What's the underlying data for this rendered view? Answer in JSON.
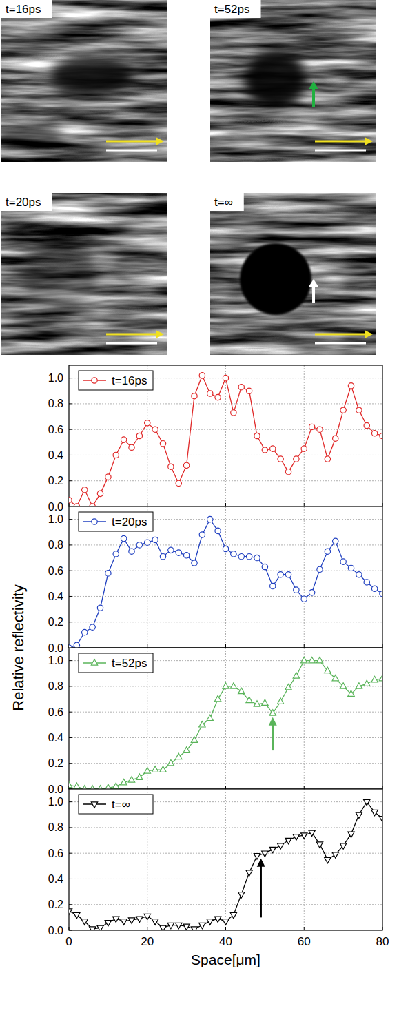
{
  "images": [
    {
      "label": "t=16ps"
    },
    {
      "label": "t=52ps"
    },
    {
      "label": "t=20ps"
    },
    {
      "label": "t=∞"
    }
  ],
  "axis_titles": {
    "x": "Space[μm]",
    "y": "Relative reflectivity"
  },
  "chart_data": [
    {
      "type": "line",
      "tick_labels": "y",
      "grid": true,
      "legend": "upper left",
      "xlim": [
        0,
        80
      ],
      "ylim": [
        0,
        1.1
      ],
      "xticks": [
        0,
        20,
        40,
        60,
        80
      ],
      "yticks": [
        {
          "value": 0,
          "label": "0.0"
        },
        {
          "value": 0.2,
          "label": "0.2"
        },
        {
          "value": 0.4,
          "label": "0.4"
        },
        {
          "value": 0.6,
          "label": "0.6"
        },
        {
          "value": 0.8,
          "label": "0.8"
        },
        {
          "value": 1,
          "label": "1.0"
        }
      ],
      "x": [
        0,
        2,
        4,
        6,
        8,
        10,
        12,
        14,
        16,
        18,
        20,
        22,
        24,
        26,
        28,
        30,
        32,
        34,
        36,
        38,
        40,
        42,
        44,
        46,
        48,
        50,
        52,
        54,
        56,
        58,
        60,
        62,
        64,
        66,
        68,
        70,
        72,
        74,
        76,
        78,
        80
      ],
      "series": [
        {
          "name": "t=16ps",
          "color": "#e02828",
          "marker": "circle",
          "values": [
            0.05,
            0.0,
            0.13,
            0.0,
            0.1,
            0.23,
            0.4,
            0.52,
            0.46,
            0.55,
            0.65,
            0.6,
            0.49,
            0.31,
            0.18,
            0.32,
            0.86,
            1.02,
            0.88,
            0.85,
            1.0,
            0.73,
            0.93,
            0.9,
            0.55,
            0.44,
            0.45,
            0.37,
            0.27,
            0.37,
            0.45,
            0.62,
            0.6,
            0.37,
            0.53,
            0.75,
            0.94,
            0.75,
            0.63,
            0.57,
            0.55
          ]
        }
      ]
    },
    {
      "type": "line",
      "tick_labels": "y",
      "grid": true,
      "legend": "upper left",
      "xlim": [
        0,
        80
      ],
      "ylim": [
        0,
        1.1
      ],
      "xticks": [
        0,
        20,
        40,
        60,
        80
      ],
      "yticks": [
        {
          "value": 0,
          "label": "0.0"
        },
        {
          "value": 0.2,
          "label": "0.2"
        },
        {
          "value": 0.4,
          "label": "0.4"
        },
        {
          "value": 0.6,
          "label": "0.6"
        },
        {
          "value": 0.8,
          "label": "0.8"
        },
        {
          "value": 1,
          "label": "1.0"
        }
      ],
      "x": [
        0,
        2,
        4,
        6,
        8,
        10,
        12,
        14,
        16,
        18,
        20,
        22,
        24,
        26,
        28,
        30,
        32,
        34,
        36,
        38,
        40,
        42,
        44,
        46,
        48,
        50,
        52,
        54,
        56,
        58,
        60,
        62,
        64,
        66,
        68,
        70,
        72,
        74,
        76,
        78,
        80
      ],
      "series": [
        {
          "name": "t=20ps",
          "color": "#2040c0",
          "marker": "circle",
          "values": [
            0.0,
            0.02,
            0.12,
            0.16,
            0.31,
            0.58,
            0.73,
            0.85,
            0.75,
            0.8,
            0.82,
            0.84,
            0.71,
            0.76,
            0.74,
            0.72,
            0.66,
            0.88,
            1.0,
            0.91,
            0.77,
            0.73,
            0.71,
            0.71,
            0.7,
            0.63,
            0.48,
            0.57,
            0.57,
            0.45,
            0.38,
            0.43,
            0.61,
            0.75,
            0.83,
            0.67,
            0.62,
            0.57,
            0.51,
            0.46,
            0.42
          ]
        }
      ]
    },
    {
      "type": "line",
      "tick_labels": "y",
      "grid": true,
      "legend": "upper left",
      "xlim": [
        0,
        80
      ],
      "ylim": [
        0,
        1.1
      ],
      "xticks": [
        0,
        20,
        40,
        60,
        80
      ],
      "yticks": [
        {
          "value": 0,
          "label": "0.0"
        },
        {
          "value": 0.2,
          "label": "0.2"
        },
        {
          "value": 0.4,
          "label": "0.4"
        },
        {
          "value": 0.6,
          "label": "0.6"
        },
        {
          "value": 0.8,
          "label": "0.8"
        },
        {
          "value": 1,
          "label": "1.0"
        }
      ],
      "x": [
        0,
        2,
        4,
        6,
        8,
        10,
        12,
        14,
        16,
        18,
        20,
        22,
        24,
        26,
        28,
        30,
        32,
        34,
        36,
        38,
        40,
        42,
        44,
        46,
        48,
        50,
        52,
        54,
        56,
        58,
        60,
        62,
        64,
        66,
        68,
        70,
        72,
        74,
        76,
        78,
        80
      ],
      "series": [
        {
          "name": "t=52ps",
          "color": "#5ab45a",
          "marker": "triangle-up",
          "values": [
            0.03,
            0.02,
            0.0,
            0.0,
            0.0,
            0.01,
            0.02,
            0.05,
            0.07,
            0.09,
            0.14,
            0.15,
            0.15,
            0.2,
            0.25,
            0.3,
            0.38,
            0.5,
            0.55,
            0.7,
            0.8,
            0.8,
            0.76,
            0.69,
            0.66,
            0.67,
            0.59,
            0.68,
            0.79,
            0.88,
            1.0,
            1.0,
            1.0,
            0.92,
            0.86,
            0.8,
            0.74,
            0.8,
            0.82,
            0.85,
            0.86
          ]
        }
      ],
      "arrows": [
        {
          "x": 52,
          "from": 0.3,
          "to": 0.56,
          "color": "#5ab45a"
        }
      ]
    },
    {
      "type": "line",
      "grid": true,
      "legend": "upper left",
      "xlim": [
        0,
        80
      ],
      "ylim": [
        0,
        1.1
      ],
      "xticks": [
        0,
        20,
        40,
        60,
        80
      ],
      "yticks": [
        {
          "value": 0,
          "label": "0.0"
        },
        {
          "value": 0.2,
          "label": "0.2"
        },
        {
          "value": 0.4,
          "label": "0.4"
        },
        {
          "value": 0.6,
          "label": "0.6"
        },
        {
          "value": 0.8,
          "label": "0.8"
        },
        {
          "value": 1,
          "label": "1.0"
        }
      ],
      "x": [
        0,
        2,
        4,
        6,
        8,
        10,
        12,
        14,
        16,
        18,
        20,
        22,
        24,
        26,
        28,
        30,
        32,
        34,
        36,
        38,
        40,
        42,
        44,
        46,
        48,
        50,
        52,
        54,
        56,
        58,
        60,
        62,
        64,
        66,
        68,
        70,
        72,
        74,
        76,
        78,
        80
      ],
      "series": [
        {
          "name": "t=∞",
          "color": "#000000",
          "marker": "triangle-down",
          "values": [
            0.15,
            0.12,
            0.07,
            0.01,
            0.02,
            0.06,
            0.09,
            0.07,
            0.08,
            0.09,
            0.11,
            0.07,
            0.02,
            0.04,
            0.04,
            0.03,
            0.01,
            0.04,
            0.07,
            0.09,
            0.07,
            0.12,
            0.28,
            0.45,
            0.58,
            0.6,
            0.63,
            0.66,
            0.7,
            0.73,
            0.74,
            0.76,
            0.67,
            0.55,
            0.59,
            0.66,
            0.75,
            0.9,
            1.0,
            0.92,
            0.87
          ]
        }
      ],
      "arrows": [
        {
          "x": 49,
          "from": 0.1,
          "to": 0.56,
          "color": "#000000"
        }
      ]
    }
  ]
}
